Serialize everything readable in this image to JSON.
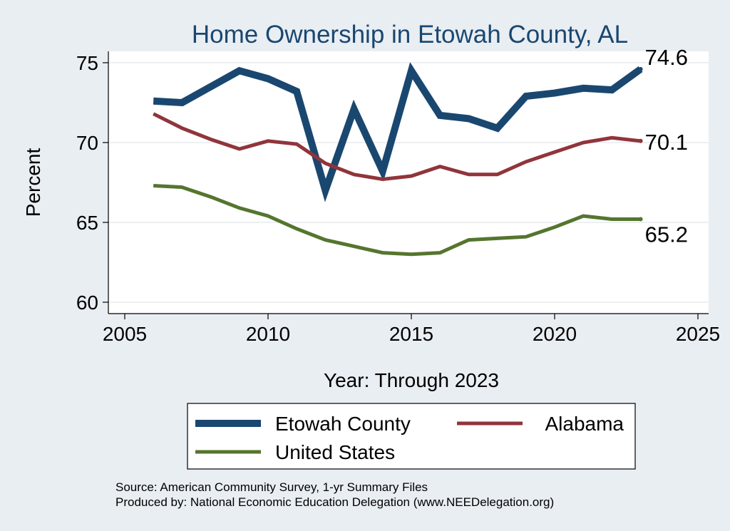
{
  "chart_data": {
    "type": "line",
    "title": "Home Ownership in Etowah County, AL",
    "xlabel": "Year: Through 2023",
    "ylabel": "Percent",
    "xlim": [
      2005,
      2025
    ],
    "ylim": [
      60,
      75
    ],
    "xticks": [
      2005,
      2010,
      2015,
      2020,
      2025
    ],
    "yticks": [
      60,
      65,
      70,
      75
    ],
    "grid": true,
    "legend_position": "bottom",
    "x": [
      2006,
      2007,
      2008,
      2009,
      2010,
      2011,
      2012,
      2013,
      2014,
      2015,
      2016,
      2017,
      2018,
      2019,
      2020,
      2021,
      2022,
      2023
    ],
    "series": [
      {
        "name": "Etowah County",
        "color": "#1a476f",
        "values": [
          72.6,
          72.5,
          73.5,
          74.5,
          74.0,
          73.2,
          67.0,
          72.1,
          68.2,
          74.5,
          71.7,
          71.5,
          70.9,
          72.9,
          73.1,
          73.4,
          73.3,
          74.6
        ],
        "end_label": "74.6"
      },
      {
        "name": "Alabama",
        "color": "#90353b",
        "values": [
          71.8,
          70.9,
          70.2,
          69.6,
          70.1,
          69.9,
          68.7,
          68.0,
          67.7,
          67.9,
          68.5,
          68.0,
          68.0,
          68.8,
          69.4,
          70.0,
          70.3,
          70.1
        ],
        "end_label": "70.1"
      },
      {
        "name": "United States",
        "color": "#55752f",
        "values": [
          67.3,
          67.2,
          66.6,
          65.9,
          65.4,
          64.6,
          63.9,
          63.5,
          63.1,
          63.0,
          63.1,
          63.9,
          64.0,
          64.1,
          64.7,
          65.4,
          65.2,
          65.2
        ],
        "end_label": "65.2"
      }
    ]
  },
  "footer": {
    "source": "Source: American Community Survey, 1-yr Summary Files",
    "produced_by": "Produced by: National Economic Education Delegation (www.NEEDelegation.org)"
  }
}
